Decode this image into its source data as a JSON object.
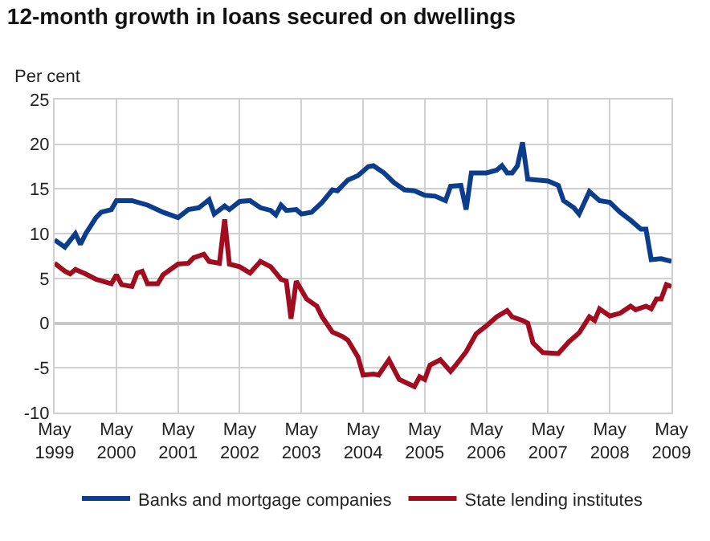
{
  "chart_data": {
    "type": "line",
    "title": "12-month growth in loans secured on dwellings",
    "ylabel": "Per cent",
    "xlim": [
      "1999-05",
      "2009-05"
    ],
    "ylim": [
      -10,
      25
    ],
    "yticks": [
      -10,
      -5,
      0,
      5,
      10,
      15,
      20,
      25
    ],
    "xticks": [
      {
        "value": "1999-05",
        "label": "May\n1999"
      },
      {
        "value": "2000-05",
        "label": "May\n2000"
      },
      {
        "value": "2001-05",
        "label": "May\n2001"
      },
      {
        "value": "2002-05",
        "label": "May\n2002"
      },
      {
        "value": "2003-05",
        "label": "May\n2003"
      },
      {
        "value": "2004-05",
        "label": "May\n2004"
      },
      {
        "value": "2005-05",
        "label": "May\n2005"
      },
      {
        "value": "2006-05",
        "label": "May\n2006"
      },
      {
        "value": "2007-05",
        "label": "May\n2007"
      },
      {
        "value": "2008-05",
        "label": "May\n2008"
      },
      {
        "value": "2009-05",
        "label": "May\n2009"
      }
    ],
    "grid": true,
    "legend": "bottom",
    "marker": "none",
    "line_style": "solid",
    "series": [
      {
        "name": "Banks and mortgage companies",
        "color": "#0b3d8c",
        "x": [
          "1999-05",
          "1999-07",
          "1999-09",
          "1999-10",
          "1999-11",
          "2000-01",
          "2000-02",
          "2000-04",
          "2000-05",
          "2000-08",
          "2000-11",
          "2001-02",
          "2001-05",
          "2001-07",
          "2001-09",
          "2001-11",
          "2001-12",
          "2002-02",
          "2002-03",
          "2002-05",
          "2002-07",
          "2002-09",
          "2002-11",
          "2002-12",
          "2003-01",
          "2003-02",
          "2003-04",
          "2003-05",
          "2003-07",
          "2003-09",
          "2003-11",
          "2003-12",
          "2004-02",
          "2004-04",
          "2004-06",
          "2004-07",
          "2004-09",
          "2004-11",
          "2005-01",
          "2005-03",
          "2005-05",
          "2005-07",
          "2005-09",
          "2005-10",
          "2005-12",
          "2006-01",
          "2006-02",
          "2006-05",
          "2006-07",
          "2006-08",
          "2006-09",
          "2006-10",
          "2006-11",
          "2006-12",
          "2007-01",
          "2007-05",
          "2007-07",
          "2007-08",
          "2007-10",
          "2007-11",
          "2008-01",
          "2008-03",
          "2008-05",
          "2008-07",
          "2008-09",
          "2008-11",
          "2008-12",
          "2009-01",
          "2009-03",
          "2009-05"
        ],
        "values": [
          9.3,
          8.5,
          10,
          8.8,
          10,
          11.8,
          12.4,
          12.7,
          13.7,
          13.7,
          13.2,
          12.4,
          11.8,
          12.7,
          12.9,
          13.8,
          12.2,
          13.1,
          12.7,
          13.6,
          13.7,
          12.9,
          12.6,
          12.1,
          13.2,
          12.6,
          12.7,
          12.2,
          12.4,
          13.5,
          14.9,
          14.8,
          16,
          16.5,
          17.5,
          17.6,
          16.8,
          15.7,
          14.9,
          14.8,
          14.3,
          14.2,
          13.7,
          15.3,
          15.4,
          12.7,
          16.8,
          16.8,
          17.1,
          17.6,
          16.8,
          16.8,
          17.6,
          20.2,
          16.1,
          15.9,
          15.4,
          13.7,
          12.9,
          12.2,
          14.7,
          13.7,
          13.5,
          12.4,
          11.5,
          10.5,
          10.5,
          7.1,
          7.2,
          6.9
        ]
      },
      {
        "name": "State lending institutes",
        "color": "#a10d1f",
        "x": [
          "1999-05",
          "1999-07",
          "1999-08",
          "1999-09",
          "1999-11",
          "2000-01",
          "2000-04",
          "2000-05",
          "2000-06",
          "2000-08",
          "2000-09",
          "2000-10",
          "2000-11",
          "2001-01",
          "2001-02",
          "2001-05",
          "2001-07",
          "2001-08",
          "2001-10",
          "2001-11",
          "2002-01",
          "2002-02",
          "2002-03",
          "2002-05",
          "2002-07",
          "2002-09",
          "2002-11",
          "2003-01",
          "2003-02",
          "2003-03",
          "2003-04",
          "2003-06",
          "2003-08",
          "2003-09",
          "2003-11",
          "2004-01",
          "2004-02",
          "2004-04",
          "2004-05",
          "2004-07",
          "2004-08",
          "2004-10",
          "2004-12",
          "2005-03",
          "2005-04",
          "2005-05",
          "2005-06",
          "2005-08",
          "2005-10",
          "2005-11",
          "2006-01",
          "2006-03",
          "2006-05",
          "2006-07",
          "2006-09",
          "2006-10",
          "2006-12",
          "2007-01",
          "2007-02",
          "2007-04",
          "2007-07",
          "2007-09",
          "2007-11",
          "2008-01",
          "2008-02",
          "2008-03",
          "2008-05",
          "2008-07",
          "2008-09",
          "2008-10",
          "2008-12",
          "2009-01",
          "2009-02",
          "2009-03",
          "2009-04",
          "2009-05"
        ],
        "values": [
          6.7,
          5.8,
          5.5,
          6,
          5.5,
          4.9,
          4.4,
          5.4,
          4.3,
          4.1,
          5.6,
          5.8,
          4.4,
          4.4,
          5.4,
          6.6,
          6.7,
          7.3,
          7.7,
          6.9,
          6.7,
          11.6,
          6.6,
          6.3,
          5.6,
          6.9,
          6.3,
          4.9,
          4.7,
          0.5,
          4.7,
          2.7,
          1.9,
          0.7,
          -1,
          -1.5,
          -1.9,
          -3.8,
          -5.8,
          -5.7,
          -5.8,
          -4.1,
          -6.3,
          -7.1,
          -6,
          -6.3,
          -4.7,
          -4.1,
          -5.4,
          -4.7,
          -3.2,
          -1.2,
          -0.3,
          0.7,
          1.4,
          0.7,
          0.3,
          0,
          -2.2,
          -3.3,
          -3.4,
          -2.1,
          -1.1,
          0.7,
          0.3,
          1.6,
          0.8,
          1.1,
          1.9,
          1.5,
          1.9,
          1.6,
          2.7,
          2.7,
          4.3,
          4.1
        ]
      }
    ]
  }
}
